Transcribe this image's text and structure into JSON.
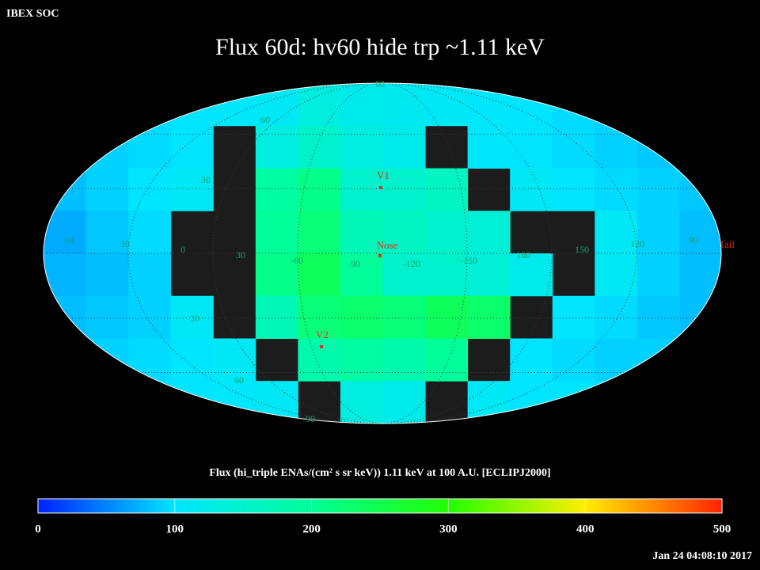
{
  "header": {
    "organization": "IBEX SOC",
    "timestamp": "Jan 24 04:08:10 2017"
  },
  "title": "Flux   60d: hv60 hide trp ~1.11 keV",
  "map": {
    "projection": "mollweide",
    "grid_labels": [
      "90",
      "60",
      "30",
      "60",
      "30",
      "0",
      "30",
      "-60",
      "90",
      "-120",
      "-150",
      "180",
      "150",
      "120",
      "90",
      "30",
      "60",
      "90"
    ],
    "markers": [
      {
        "label": "V1"
      },
      {
        "label": "Nose"
      },
      {
        "label": "V2"
      },
      {
        "label": "Tail"
      }
    ],
    "flux": [
      [
        90,
        90,
        95,
        100,
        105,
        110,
        130,
        120,
        115,
        110,
        105,
        100,
        95,
        90,
        90,
        90
      ],
      [
        85,
        90,
        95,
        100,
        null,
        130,
        150,
        130,
        120,
        null,
        105,
        100,
        95,
        90,
        85,
        85
      ],
      [
        80,
        90,
        100,
        110,
        null,
        190,
        210,
        150,
        150,
        160,
        null,
        110,
        100,
        95,
        90,
        85
      ],
      [
        70,
        85,
        95,
        null,
        null,
        200,
        220,
        170,
        160,
        150,
        140,
        null,
        null,
        110,
        90,
        80
      ],
      [
        75,
        80,
        90,
        null,
        null,
        210,
        240,
        200,
        150,
        150,
        140,
        120,
        null,
        110,
        90,
        80
      ],
      [
        80,
        85,
        90,
        110,
        null,
        170,
        220,
        230,
        220,
        240,
        230,
        null,
        100,
        95,
        85,
        80
      ],
      [
        90,
        90,
        95,
        100,
        110,
        null,
        180,
        190,
        180,
        200,
        null,
        100,
        95,
        90,
        90,
        90
      ],
      [
        95,
        95,
        100,
        100,
        105,
        110,
        null,
        130,
        120,
        null,
        110,
        100,
        100,
        95,
        95,
        95
      ]
    ]
  },
  "colorbar": {
    "label": "Flux (hi_triple ENAs/(cm² s sr keV))  1.11 keV at 100 A.U. [ECLIPJ2000]",
    "lim": [
      0,
      500
    ],
    "ticks": [
      0,
      100,
      200,
      300,
      400,
      500
    ],
    "colors": [
      "#0022ff",
      "#00e5ff",
      "#00ff99",
      "#22ff00",
      "#ffee00",
      "#ff2200"
    ]
  }
}
